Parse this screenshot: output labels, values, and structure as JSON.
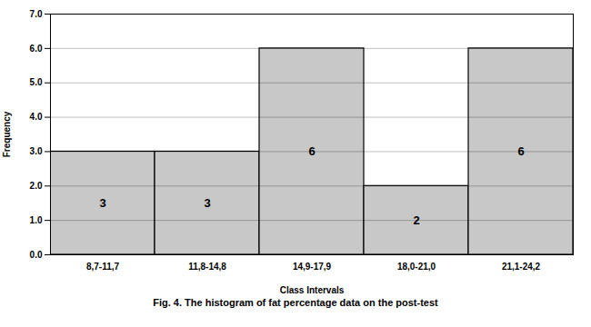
{
  "chart_data": {
    "type": "bar",
    "caption": "Fig. 4.  The histogram of fat percentage data on the post-test",
    "xlabel": "Class Intervals",
    "ylabel": "Frequency",
    "categories": [
      "8,7-11,7",
      "11,8-14,8",
      "14,9-17,9",
      "18,0-21,0",
      "21,1-24,2"
    ],
    "values": [
      3,
      3,
      6,
      2,
      6
    ],
    "color": "#C8C8C8",
    "ylim": [
      0,
      7
    ],
    "yticks": [
      0,
      1,
      2,
      3,
      4,
      5,
      6,
      7
    ],
    "grid": true,
    "data_labels": true
  }
}
